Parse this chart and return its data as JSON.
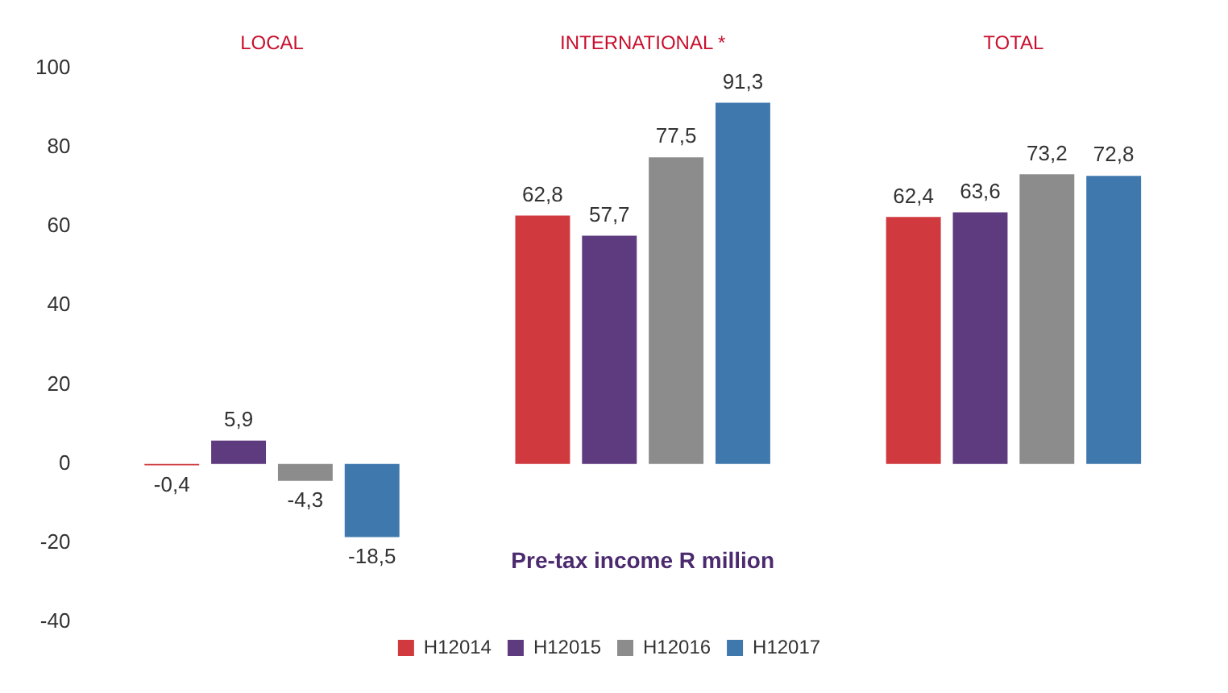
{
  "chart_data": {
    "type": "bar",
    "xlabel": "Pre-tax income R million",
    "categories": [
      "LOCAL",
      "INTERNATIONAL *",
      "TOTAL"
    ],
    "series": [
      {
        "name": "H12014",
        "color": "#d0393e",
        "values": [
          -0.4,
          62.8,
          62.4
        ],
        "value_labels": [
          "-0,4",
          "62,8",
          "62,4"
        ]
      },
      {
        "name": "H12015",
        "color": "#5e3a7e",
        "values": [
          5.9,
          57.7,
          63.6
        ],
        "value_labels": [
          "5,9",
          "57,7",
          "63,6"
        ]
      },
      {
        "name": "H12016",
        "color": "#8c8c8c",
        "values": [
          -4.3,
          77.5,
          73.2
        ],
        "value_labels": [
          "-4,3",
          "77,5",
          "73,2"
        ]
      },
      {
        "name": "H12017",
        "color": "#3f78ad",
        "values": [
          -18.5,
          91.3,
          72.8
        ],
        "value_labels": [
          "-18,5",
          "91,3",
          "72,8"
        ]
      }
    ],
    "ylim": [
      -40,
      100
    ],
    "yticks": [
      -40,
      -20,
      0,
      20,
      40,
      60,
      80,
      100
    ],
    "grid": false,
    "legend": "bottom"
  }
}
